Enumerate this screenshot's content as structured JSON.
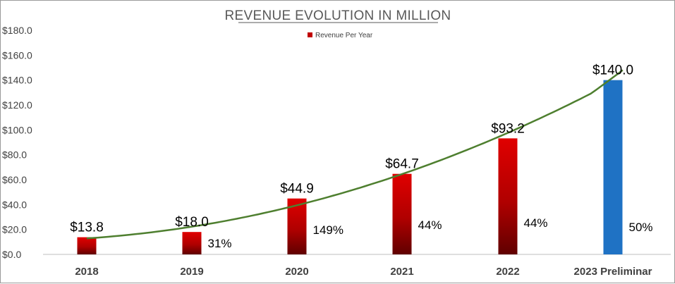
{
  "chart_data": {
    "type": "bar",
    "title": "REVENUE EVOLUTION IN MILLION",
    "categories": [
      "2018",
      "2019",
      "2020",
      "2021",
      "2022",
      "2023 Preliminar"
    ],
    "series": [
      {
        "name": "Revenue Per Year",
        "values": [
          13.8,
          18.0,
          44.9,
          64.7,
          93.2,
          140.0
        ],
        "value_labels": [
          "$13.8",
          "$18.0",
          "$44.9",
          "$64.7",
          "$93.2",
          "$140.0"
        ],
        "growth_labels": [
          "",
          "31%",
          "149%",
          "44%",
          "44%",
          "50%"
        ]
      }
    ],
    "trendline": {
      "type": "polynomial",
      "color": "#4e7f2f"
    },
    "ylim": [
      0,
      180
    ],
    "yticks": [
      0,
      20,
      40,
      60,
      80,
      100,
      120,
      140,
      160,
      180
    ],
    "ytick_labels": [
      "$0.0",
      "$20.0",
      "$40.0",
      "$60.0",
      "$80.0",
      "$100.0",
      "$120.0",
      "$140.0",
      "$160.0",
      "$180.0"
    ],
    "xlabel": "",
    "ylabel": "",
    "legend_position": "top-center",
    "grid": false,
    "colors": {
      "bar": "#c00000",
      "bar_dark": "#6b0000",
      "highlight": "#1f72c4",
      "axis": "#bfbfbf"
    }
  }
}
